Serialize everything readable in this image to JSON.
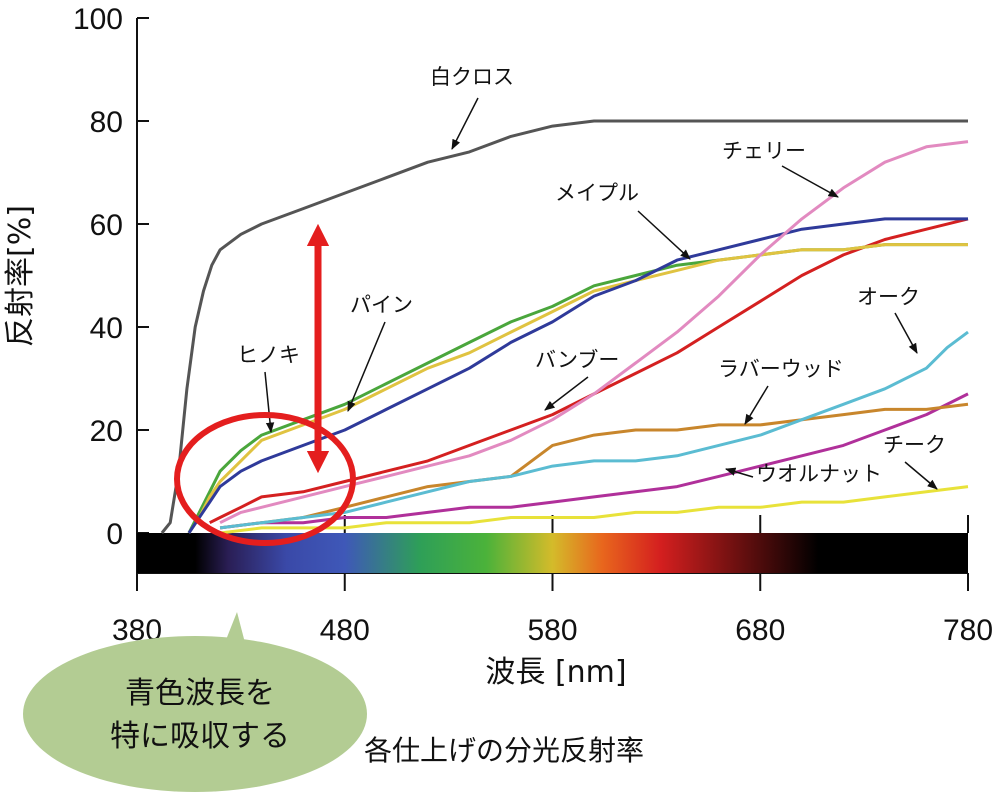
{
  "chart_data": {
    "type": "line",
    "title": "",
    "caption": "各仕上げの分光反射率",
    "xlabel": "波長 [nm]",
    "ylabel": "反射率[%]",
    "xlim": [
      380,
      780
    ],
    "ylim": [
      0,
      100
    ],
    "x_ticks": [
      "380",
      "480",
      "580",
      "680",
      "780"
    ],
    "y_ticks": [
      "0",
      "20",
      "40",
      "60",
      "80",
      "100"
    ],
    "grid": false,
    "spectrum_band": true,
    "series": [
      {
        "name": "白クロス",
        "color": "#555555",
        "x": [
          392,
          396,
          400,
          404,
          408,
          412,
          416,
          420,
          430,
          440,
          460,
          480,
          500,
          520,
          540,
          560,
          580,
          600,
          620,
          640,
          660,
          680,
          700,
          720,
          740,
          760,
          780
        ],
        "y": [
          0,
          2,
          12,
          28,
          40,
          47,
          52,
          55,
          58,
          60,
          63,
          66,
          69,
          72,
          74,
          77,
          79,
          80,
          80,
          80,
          80,
          80,
          80,
          80,
          80,
          80,
          80
        ]
      },
      {
        "name": "チェリー",
        "color": "#e28ac0",
        "x": [
          420,
          430,
          440,
          460,
          480,
          500,
          520,
          540,
          560,
          580,
          600,
          620,
          640,
          660,
          680,
          700,
          720,
          740,
          760,
          780
        ],
        "y": [
          2,
          4,
          5,
          7,
          9,
          11,
          13,
          15,
          18,
          22,
          27,
          33,
          39,
          46,
          54,
          61,
          67,
          72,
          75,
          76
        ]
      },
      {
        "name": "メイプル",
        "color": "#2f3a9a",
        "x": [
          405,
          410,
          415,
          420,
          430,
          440,
          460,
          480,
          500,
          520,
          540,
          560,
          580,
          600,
          620,
          640,
          660,
          680,
          700,
          720,
          740,
          760,
          780
        ],
        "y": [
          0,
          3,
          6,
          9,
          12,
          14,
          17,
          20,
          24,
          28,
          32,
          37,
          41,
          46,
          49,
          53,
          55,
          57,
          59,
          60,
          61,
          61,
          61
        ]
      },
      {
        "name": "パイン",
        "color": "#e0c341",
        "x": [
          405,
          410,
          415,
          420,
          430,
          440,
          460,
          480,
          500,
          520,
          540,
          560,
          580,
          600,
          620,
          640,
          660,
          680,
          700,
          720,
          740,
          760,
          780
        ],
        "y": [
          0,
          3,
          7,
          10,
          14,
          18,
          21,
          24,
          28,
          32,
          35,
          39,
          43,
          47,
          49,
          51,
          53,
          54,
          55,
          55,
          56,
          56,
          56
        ]
      },
      {
        "name": "ヒノキ",
        "color": "#4aa63c",
        "x": [
          405,
          410,
          415,
          420,
          430,
          440,
          460,
          480,
          500,
          520,
          540,
          560,
          580,
          600,
          620,
          640,
          660,
          680,
          700,
          720,
          740,
          760,
          780
        ],
        "y": [
          0,
          4,
          8,
          12,
          16,
          19,
          22,
          25,
          29,
          33,
          37,
          41,
          44,
          48,
          50,
          52,
          53,
          54,
          55,
          55,
          56,
          56,
          56
        ]
      },
      {
        "name": "バンブー",
        "color": "#d42020",
        "x": [
          415,
          420,
          430,
          440,
          460,
          480,
          500,
          520,
          540,
          560,
          580,
          600,
          620,
          640,
          660,
          680,
          700,
          720,
          740,
          760,
          780
        ],
        "y": [
          2,
          3,
          5,
          7,
          8,
          10,
          12,
          14,
          17,
          20,
          23,
          27,
          31,
          35,
          40,
          45,
          50,
          54,
          57,
          59,
          61
        ]
      },
      {
        "name": "オーク",
        "color": "#5bbcd2",
        "x": [
          420,
          440,
          460,
          480,
          500,
          520,
          540,
          560,
          580,
          600,
          620,
          640,
          660,
          680,
          700,
          720,
          740,
          760,
          770,
          780
        ],
        "y": [
          1,
          2,
          3,
          4,
          6,
          8,
          10,
          11,
          13,
          14,
          14,
          15,
          17,
          19,
          22,
          25,
          28,
          32,
          36,
          39
        ]
      },
      {
        "name": "ラバーウッド",
        "color": "#c8862c",
        "x": [
          420,
          440,
          460,
          480,
          500,
          520,
          540,
          560,
          570,
          580,
          600,
          620,
          640,
          660,
          680,
          700,
          720,
          740,
          760,
          780
        ],
        "y": [
          1,
          2,
          3,
          5,
          7,
          9,
          10,
          11,
          14,
          17,
          19,
          20,
          20,
          21,
          21,
          22,
          23,
          24,
          24,
          25
        ]
      },
      {
        "name": "ウオルナット",
        "color": "#b0309a",
        "x": [
          420,
          440,
          460,
          480,
          500,
          520,
          540,
          560,
          580,
          600,
          620,
          640,
          660,
          680,
          700,
          720,
          740,
          760,
          780
        ],
        "y": [
          1,
          2,
          2,
          3,
          3,
          4,
          5,
          5,
          6,
          7,
          8,
          9,
          11,
          13,
          15,
          17,
          20,
          23,
          27
        ]
      },
      {
        "name": "チーク",
        "color": "#e8e23a",
        "x": [
          420,
          440,
          460,
          480,
          500,
          520,
          540,
          560,
          580,
          600,
          620,
          640,
          660,
          680,
          700,
          720,
          740,
          760,
          780
        ],
        "y": [
          0,
          1,
          1,
          1,
          2,
          2,
          2,
          3,
          3,
          3,
          4,
          4,
          5,
          5,
          6,
          6,
          7,
          8,
          9
        ]
      }
    ],
    "annotations": {
      "bubble_text": [
        "青色波長を",
        "特に吸収する"
      ]
    }
  },
  "colors": {
    "axis": "#111111",
    "arrow": "#e41e1e",
    "ellipse": "#e41e1e",
    "bubble_fill": "#b3cc93"
  }
}
